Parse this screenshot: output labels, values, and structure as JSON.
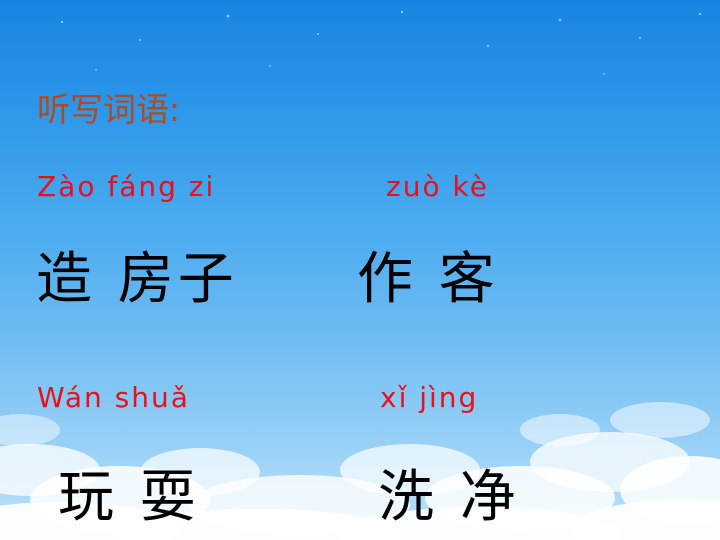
{
  "slide": {
    "title": "听写词语:",
    "words": [
      {
        "pinyin": "Zào fáng zi",
        "hanzi": "造 房子"
      },
      {
        "pinyin": "zuò kè",
        "hanzi": "作 客"
      },
      {
        "pinyin": "Wán shuǎ",
        "hanzi": "玩 耍"
      },
      {
        "pinyin": "xǐ jìng",
        "hanzi": "洗 净"
      }
    ]
  },
  "colors": {
    "title": "#b24a1f",
    "pinyin": "#e8101a",
    "hanzi": "#000000",
    "sky_top": "#1784e0",
    "sky_bottom": "#bfe3f9"
  }
}
